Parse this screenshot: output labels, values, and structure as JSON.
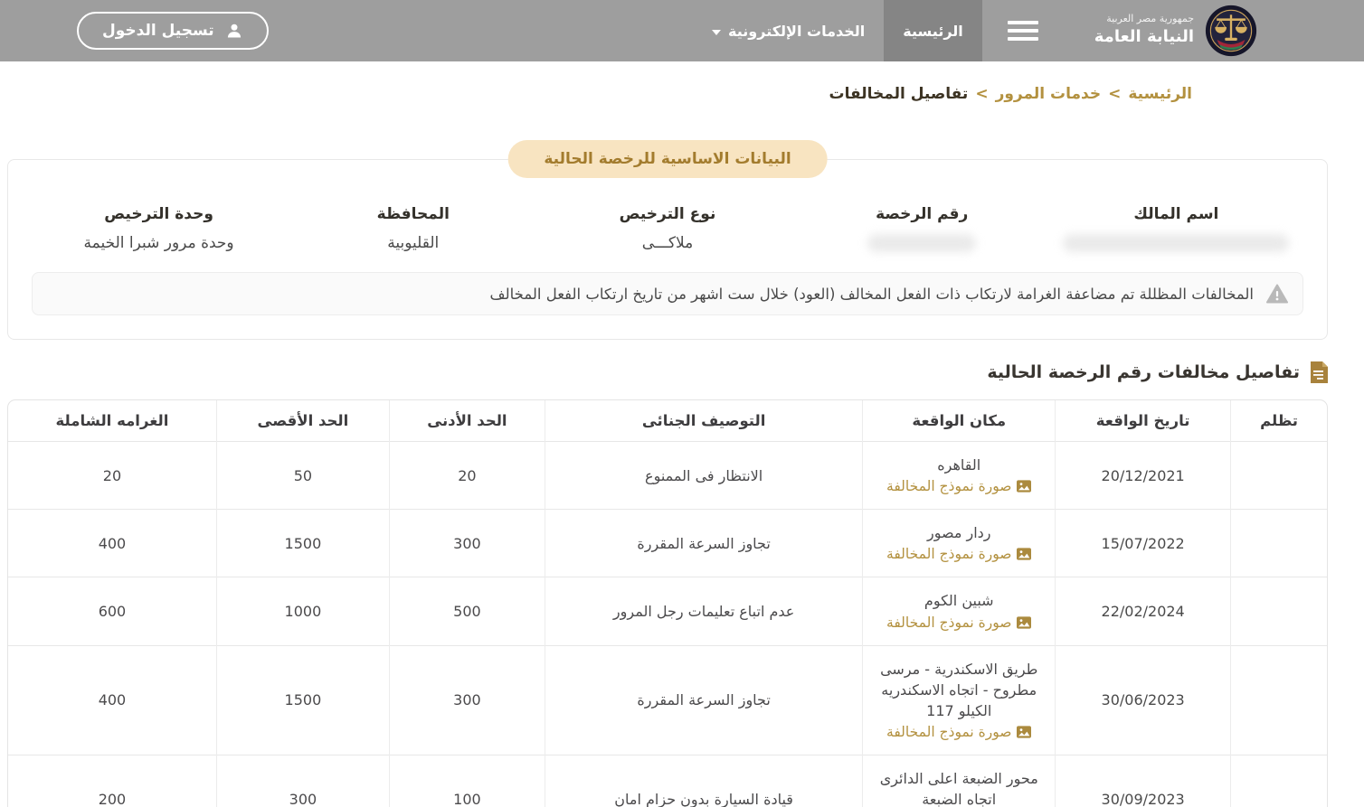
{
  "colors": {
    "accent_gold": "#b3913f",
    "pill_background": "#f8e4c1",
    "header_gray": "#9e9e9e",
    "header_active_gray": "#858585"
  },
  "header": {
    "brand": {
      "country": "جمهورية مصر العربية",
      "name": "النيابة العامة"
    },
    "nav": {
      "home_label": "الرئيسية",
      "eservices_label": "الخدمات الإلكترونية"
    },
    "login_label": "تسجيل الدخول"
  },
  "breadcrumb": {
    "home": "الرئيسية",
    "separator": ">",
    "traffic": "خدمات المرور",
    "current": "تفاصيل المخالفات"
  },
  "license_card": {
    "title": "البيانات الاساسية للرخصة الحالية",
    "fields": [
      {
        "label": "اسم المالك",
        "value": "",
        "redacted": true
      },
      {
        "label": "رقم الرخصة",
        "value": "",
        "redacted": true
      },
      {
        "label": "نوع الترخيص",
        "value": "ملاكـــى"
      },
      {
        "label": "المحافظة",
        "value": "القليوبية"
      },
      {
        "label": "وحدة الترخيص",
        "value": "وحدة مرور شبرا الخيمة"
      }
    ],
    "notice": "المخالفات المظللة تم مضاعفة الغرامة لارتكاب ذات الفعل المخالف (العود) خلال ست اشهر من تاريخ ارتكاب الفعل المخالف"
  },
  "violations": {
    "section_title": "تفاصيل مخالفات رقم الرخصة الحالية",
    "photo_link_label": "صورة نموذج المخالفة",
    "table": {
      "headers": [
        "تظلم",
        "تاريخ الواقعة",
        "مكان الواقعة",
        "التوصيف الجنائى",
        "الحد الأدنى",
        "الحد الأقصى",
        "الغرامه الشاملة"
      ],
      "rows": [
        {
          "appeal": "",
          "date": "20/12/2021",
          "location": "القاهره",
          "description": "الانتظار فى الممنوع",
          "min": "20",
          "max": "50",
          "total": "20"
        },
        {
          "appeal": "",
          "date": "15/07/2022",
          "location": "ردار مصور",
          "description": "تجاوز السرعة المقررة",
          "min": "300",
          "max": "1500",
          "total": "400"
        },
        {
          "appeal": "",
          "date": "22/02/2024",
          "location": "شبين الكوم",
          "description": "عدم اتباع تعليمات رجل المرور",
          "min": "500",
          "max": "1000",
          "total": "600"
        },
        {
          "appeal": "",
          "date": "30/06/2023",
          "location": "طريق الاسكندرية - مرسى مطروح - اتجاه الاسكندريه الكيلو 117",
          "description": "تجاوز السرعة المقررة",
          "min": "300",
          "max": "1500",
          "total": "400"
        },
        {
          "appeal": "",
          "date": "30/09/2023",
          "location": "محور الضبعة اعلى الدائرى اتجاه الضبعة",
          "description": "قيادة السيارة بدون حزام امان",
          "min": "100",
          "max": "300",
          "total": "200"
        }
      ]
    }
  }
}
